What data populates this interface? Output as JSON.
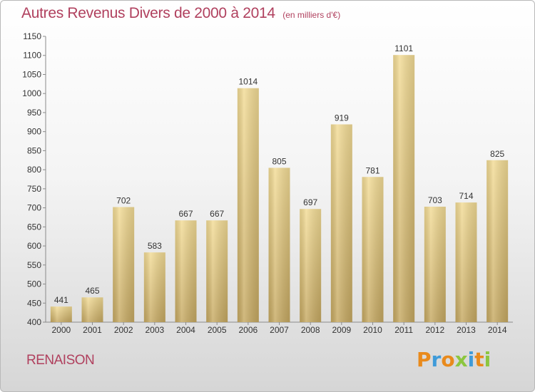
{
  "chart_data": {
    "type": "bar",
    "title": "Autres Revenus Divers de 2000 à 2014",
    "subtitle": "(en milliers d'€)",
    "categories": [
      "2000",
      "2001",
      "2002",
      "2003",
      "2004",
      "2005",
      "2006",
      "2007",
      "2008",
      "2009",
      "2010",
      "2011",
      "2012",
      "2013",
      "2014"
    ],
    "values": [
      441,
      465,
      702,
      583,
      667,
      667,
      1014,
      805,
      697,
      919,
      781,
      1101,
      703,
      714,
      825
    ],
    "ylim": [
      400,
      1150
    ],
    "yticks": [
      400,
      450,
      500,
      550,
      600,
      650,
      700,
      750,
      800,
      850,
      900,
      950,
      1000,
      1050,
      1100,
      1150
    ],
    "grid": false,
    "bar_color": "#e6cf8a"
  },
  "footer": {
    "town": "RENAISON",
    "logo_letters": [
      "P",
      "r",
      "o",
      "x",
      "i",
      "t",
      "i"
    ],
    "logo_colors": [
      "#e98a1c",
      "#3f9bd9",
      "#e98a1c",
      "#8cc63f",
      "#3f9bd9",
      "#e98a1c",
      "#8cc63f"
    ]
  }
}
